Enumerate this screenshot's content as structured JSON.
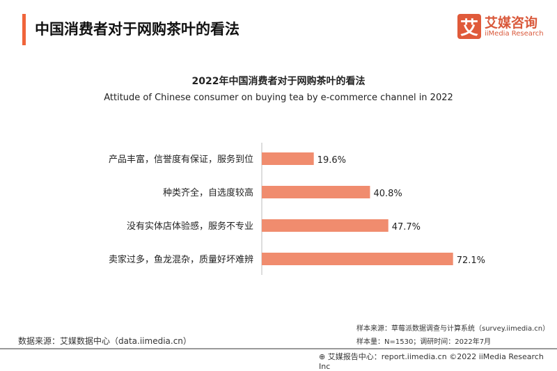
{
  "header": {
    "title": "中国消费者对于网购茶叶的看法",
    "logo_char": "艾",
    "logo_cn": "艾媒咨询",
    "logo_en": "iiMedia Research",
    "accent_color": "#f0643a"
  },
  "chart_data": {
    "type": "bar",
    "orientation": "horizontal",
    "title": "2022年中国消费者对于网购茶叶的看法",
    "subtitle": "Attitude of Chinese consumer on buying tea by e-commerce channel in 2022",
    "categories": [
      "产品丰富，信誉度有保证，服务到位",
      "种类齐全，自选度较高",
      "没有实体店体验感，服务不专业",
      "卖家过多，鱼龙混杂，质量好坏难辨"
    ],
    "values": [
      19.6,
      40.8,
      47.7,
      72.1
    ],
    "labels": [
      "19.6%",
      "40.8%",
      "47.7%",
      "72.1%"
    ],
    "unit": "%",
    "bar_color": "#f08c6e",
    "grid": false
  },
  "footer": {
    "source": "数据来源：艾媒数据中心（data.iimedia.cn）",
    "sample_source": "样本来源：草莓派数据调查与计算系统（survey.iimedia.cn）",
    "sample_size": "样本量：N=1530；调研时间：2022年7月",
    "copyright": "艾媒报告中心：report.iimedia.cn  ©2022  iiMedia Research  Inc"
  }
}
